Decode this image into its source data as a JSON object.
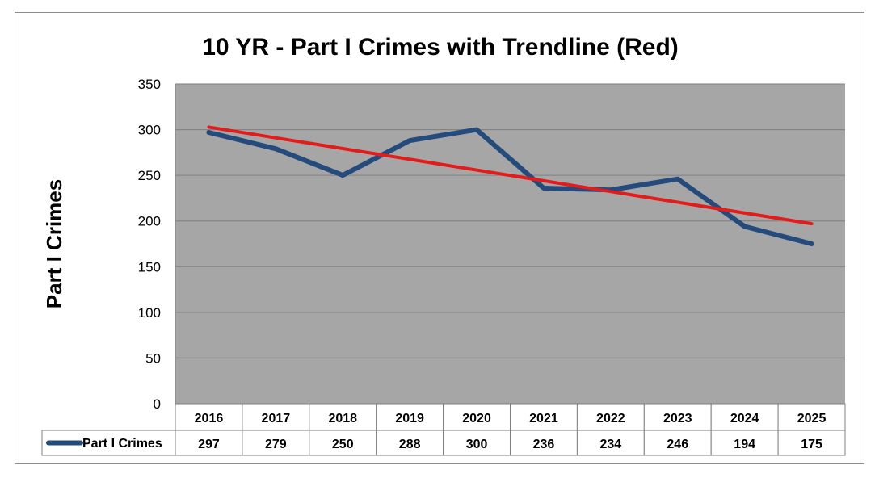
{
  "chart_data": {
    "type": "line",
    "title": "10 YR - Part I Crimes with Trendline (Red)",
    "ylabel": "Part I Crimes",
    "xlabel": "",
    "ylim": [
      0,
      350
    ],
    "yticks": [
      0,
      50,
      100,
      150,
      200,
      250,
      300,
      350
    ],
    "grid": true,
    "categories": [
      "2016",
      "2017",
      "2018",
      "2019",
      "2020",
      "2021",
      "2022",
      "2023",
      "2024",
      "2025"
    ],
    "series": [
      {
        "name": "Part I Crimes",
        "values": [
          297,
          279,
          250,
          288,
          300,
          236,
          234,
          246,
          194,
          175
        ],
        "color": "#254a7c"
      }
    ],
    "trendline": {
      "values": [
        302.8,
        279.2,
        255.7,
        232.1,
        196.9
      ],
      "color": "#e31b1b"
    },
    "plot_background": "#a6a6a6",
    "data_table": true
  }
}
